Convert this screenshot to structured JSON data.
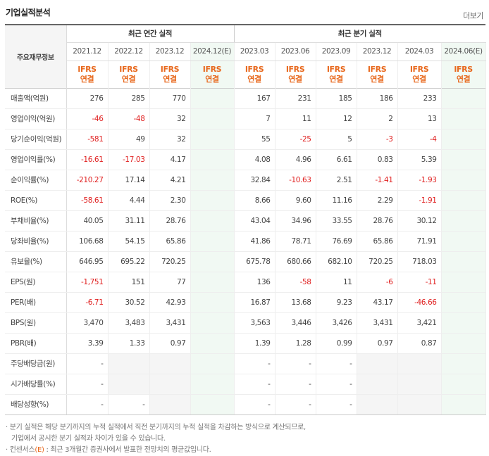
{
  "header": {
    "title": "기업실적분석",
    "more": "더보기"
  },
  "table": {
    "label_header": "주요재무정보",
    "annual_title": "최근 연간 실적",
    "quarter_title": "최근 분기 실적",
    "annual_periods": [
      "2021.12",
      "2022.12",
      "2023.12",
      "2024.12(E)"
    ],
    "quarter_periods": [
      "2023.03",
      "2023.06",
      "2023.09",
      "2023.12",
      "2024.03",
      "2024.06(E)"
    ],
    "ifrs_top": "IFRS",
    "ifrs_bottom": "연결",
    "rows": [
      {
        "label": "매출액(억원)",
        "values": [
          "276",
          "285",
          "770",
          "",
          "167",
          "231",
          "185",
          "186",
          "233",
          ""
        ]
      },
      {
        "label": "영업이익(억원)",
        "values": [
          "-46",
          "-48",
          "32",
          "",
          "7",
          "11",
          "12",
          "2",
          "13",
          ""
        ]
      },
      {
        "label": "당기순이익(억원)",
        "values": [
          "-581",
          "49",
          "32",
          "",
          "55",
          "-25",
          "5",
          "-3",
          "-4",
          ""
        ]
      },
      {
        "label": "영업이익률(%)",
        "values": [
          "-16.61",
          "-17.03",
          "4.17",
          "",
          "4.08",
          "4.96",
          "6.61",
          "0.83",
          "5.39",
          ""
        ]
      },
      {
        "label": "순이익률(%)",
        "values": [
          "-210.27",
          "17.14",
          "4.21",
          "",
          "32.84",
          "-10.63",
          "2.51",
          "-1.41",
          "-1.93",
          ""
        ]
      },
      {
        "label": "ROE(%)",
        "values": [
          "-58.61",
          "4.44",
          "2.30",
          "",
          "8.66",
          "9.60",
          "11.16",
          "2.29",
          "-1.91",
          ""
        ]
      },
      {
        "label": "부채비율(%)",
        "values": [
          "40.05",
          "31.11",
          "28.76",
          "",
          "43.04",
          "34.96",
          "33.55",
          "28.76",
          "30.12",
          ""
        ]
      },
      {
        "label": "당좌비율(%)",
        "values": [
          "106.68",
          "54.15",
          "65.86",
          "",
          "41.86",
          "78.71",
          "76.69",
          "65.86",
          "71.91",
          ""
        ]
      },
      {
        "label": "유보율(%)",
        "values": [
          "646.95",
          "695.22",
          "720.25",
          "",
          "675.78",
          "680.66",
          "682.10",
          "720.25",
          "718.03",
          ""
        ]
      },
      {
        "label": "EPS(원)",
        "values": [
          "-1,751",
          "151",
          "77",
          "",
          "136",
          "-58",
          "11",
          "-6",
          "-11",
          ""
        ]
      },
      {
        "label": "PER(배)",
        "values": [
          "-6.71",
          "30.52",
          "42.93",
          "",
          "16.87",
          "13.68",
          "9.23",
          "43.17",
          "-46.66",
          ""
        ]
      },
      {
        "label": "BPS(원)",
        "values": [
          "3,470",
          "3,483",
          "3,431",
          "",
          "3,563",
          "3,446",
          "3,426",
          "3,431",
          "3,421",
          ""
        ]
      },
      {
        "label": "PBR(배)",
        "values": [
          "3.39",
          "1.33",
          "0.97",
          "",
          "1.39",
          "1.28",
          "0.99",
          "0.97",
          "0.87",
          ""
        ]
      },
      {
        "label": "주당배당금(원)",
        "values": [
          "-",
          "",
          "",
          "",
          "-",
          "-",
          "-",
          "",
          "",
          ""
        ]
      },
      {
        "label": "시가배당률(%)",
        "values": [
          "-",
          "",
          "",
          "",
          "-",
          "-",
          "-",
          "",
          "",
          ""
        ]
      },
      {
        "label": "배당성향(%)",
        "values": [
          "-",
          "-",
          "",
          "",
          "-",
          "-",
          "-",
          "",
          "",
          ""
        ]
      }
    ]
  },
  "notes": {
    "line1": "· 분기 실적은 해당 분기까지의 누적 실적에서 직전 분기까지의 누적 실적을 차감하는 방식으로 계산되므로,",
    "line2": "기업에서 공시한 분기 실적과 차이가 있을 수 있습니다.",
    "line3_prefix": "· 컨센서스",
    "line3_e": "(E)",
    "line3_suffix": ": 최근 3개월간 증권사에서 발표한 전망치의 평균값입니다."
  }
}
